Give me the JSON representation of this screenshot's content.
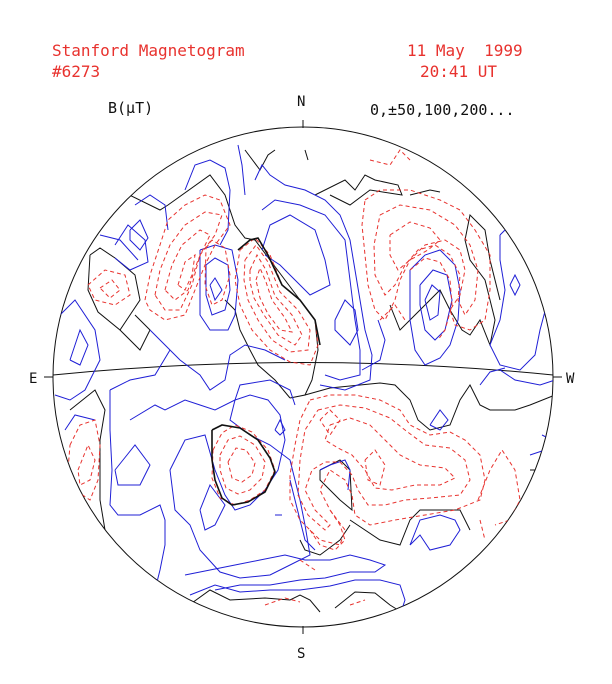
{
  "header": {
    "title": "Stanford Magnetogram",
    "number": "#6273",
    "date": "11 May  1999",
    "time": "20:41 UT"
  },
  "units_label": "B(µT)",
  "contour_levels": "0,±50,100,200...",
  "directions": {
    "north": "N",
    "south": "S",
    "east": "E",
    "west": "W"
  },
  "colors": {
    "positive": "#e8322e",
    "negative": "#1f1fd6",
    "neutral": "#111111",
    "header_text": "#e8322e"
  }
}
